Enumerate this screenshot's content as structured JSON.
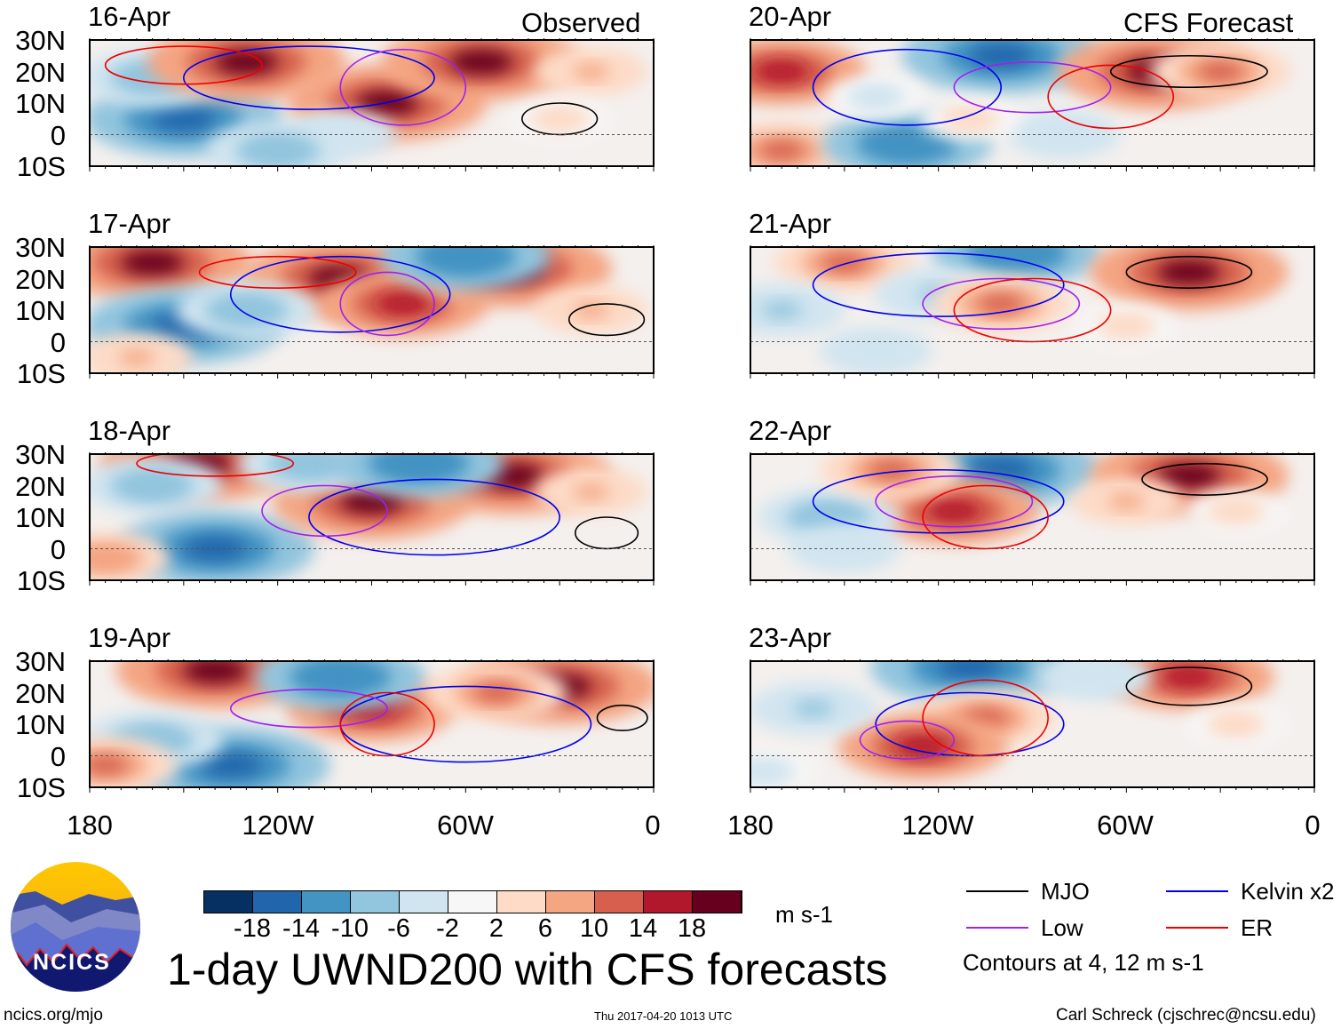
{
  "labels": {
    "observed": "Observed",
    "forecast": "CFS Forecast",
    "lat_ticks": [
      "30N",
      "20N",
      "10N",
      "0",
      "10S"
    ],
    "lon_ticks": [
      "180",
      "120W",
      "60W",
      "0"
    ],
    "title": "1-day UWND200 with CFS forecasts",
    "units": "m s-1",
    "website": "ncics.org/mjo",
    "timestamp": "Thu 2017-04-20 1013 UTC",
    "author": "Carl Schreck (cjschrec@ncsu.edu)",
    "logo_text": "NCICS",
    "contour_note": "Contours at 4, 12 m s-1"
  },
  "legend": [
    {
      "label": "MJO",
      "color": "#000000"
    },
    {
      "label": "Kelvin x2",
      "color": "#0000ee"
    },
    {
      "label": "Low",
      "color": "#a020f0"
    },
    {
      "label": "ER",
      "color": "#ee0000"
    }
  ],
  "colorbar": {
    "colors": [
      "#053061",
      "#2166ac",
      "#4393c3",
      "#92c5de",
      "#d1e5f0",
      "#f7f7f7",
      "#fddbc7",
      "#f4a582",
      "#d6604d",
      "#b2182b",
      "#67001f"
    ],
    "ticks": [
      "-18",
      "-14",
      "-10",
      "-6",
      "-2",
      "2",
      "6",
      "10",
      "14",
      "18"
    ]
  },
  "panels": [
    {
      "date": "16-Apr",
      "anoms": [
        [
          -150,
          5,
          -18
        ],
        [
          -160,
          18,
          -10
        ],
        [
          -130,
          23,
          18
        ],
        [
          -85,
          10,
          18
        ],
        [
          -55,
          23,
          18
        ],
        [
          -20,
          20,
          6
        ],
        [
          -100,
          0,
          -6
        ],
        [
          -30,
          5,
          4
        ],
        [
          -120,
          -5,
          -10
        ]
      ],
      "contours": [
        [
          "Kelvin x2",
          -110,
          18,
          40,
          10
        ],
        [
          "Low",
          -80,
          15,
          20,
          12
        ],
        [
          "ER",
          -150,
          22,
          25,
          6
        ],
        [
          "MJO",
          -30,
          5,
          12,
          5
        ]
      ]
    },
    {
      "date": "17-Apr",
      "anoms": [
        [
          -160,
          25,
          18
        ],
        [
          -150,
          5,
          -18
        ],
        [
          -100,
          20,
          18
        ],
        [
          -80,
          12,
          14
        ],
        [
          -45,
          23,
          18
        ],
        [
          -130,
          10,
          -10
        ],
        [
          -60,
          27,
          -14
        ],
        [
          -20,
          10,
          6
        ],
        [
          -165,
          -5,
          6
        ]
      ],
      "contours": [
        [
          "Kelvin x2",
          -100,
          15,
          35,
          12
        ],
        [
          "Low",
          -85,
          12,
          15,
          10
        ],
        [
          "ER",
          -120,
          22,
          25,
          5
        ],
        [
          "MJO",
          -15,
          7,
          12,
          5
        ]
      ]
    },
    {
      "date": "18-Apr",
      "anoms": [
        [
          -145,
          27,
          18
        ],
        [
          -160,
          20,
          -10
        ],
        [
          -140,
          0,
          -18
        ],
        [
          -90,
          15,
          18
        ],
        [
          -45,
          23,
          18
        ],
        [
          -110,
          27,
          -10
        ],
        [
          -20,
          18,
          6
        ],
        [
          -75,
          27,
          -14
        ],
        [
          -175,
          -3,
          8
        ]
      ],
      "contours": [
        [
          "Kelvin x2",
          -70,
          10,
          40,
          12
        ],
        [
          "Low",
          -105,
          12,
          20,
          8
        ],
        [
          "ER",
          -140,
          27,
          25,
          4
        ],
        [
          "MJO",
          -15,
          5,
          10,
          5
        ]
      ]
    },
    {
      "date": "19-Apr",
      "anoms": [
        [
          -140,
          27,
          18
        ],
        [
          -135,
          -3,
          -18
        ],
        [
          -160,
          5,
          -10
        ],
        [
          -90,
          15,
          14
        ],
        [
          -30,
          22,
          18
        ],
        [
          -100,
          25,
          -14
        ],
        [
          -50,
          20,
          10
        ],
        [
          -175,
          -3,
          10
        ]
      ],
      "contours": [
        [
          "Kelvin x2",
          -60,
          10,
          40,
          12
        ],
        [
          "Low",
          -110,
          15,
          25,
          6
        ],
        [
          "ER",
          -85,
          10,
          15,
          10
        ],
        [
          "MJO",
          -10,
          12,
          8,
          4
        ]
      ]
    },
    {
      "date": "20-Apr",
      "anoms": [
        [
          -170,
          20,
          14
        ],
        [
          -100,
          25,
          -18
        ],
        [
          -50,
          20,
          18
        ],
        [
          -30,
          20,
          10
        ],
        [
          -170,
          -5,
          10
        ],
        [
          -130,
          -3,
          -14
        ],
        [
          -80,
          0,
          -6
        ],
        [
          -110,
          5,
          4
        ],
        [
          -140,
          12,
          -4
        ]
      ],
      "contours": [
        [
          "Kelvin x2",
          -130,
          15,
          30,
          12
        ],
        [
          "Low",
          -90,
          15,
          25,
          8
        ],
        [
          "ER",
          -65,
          12,
          20,
          10
        ],
        [
          "MJO",
          -40,
          20,
          25,
          5
        ]
      ]
    },
    {
      "date": "21-Apr",
      "anoms": [
        [
          -150,
          25,
          10
        ],
        [
          -95,
          28,
          -14
        ],
        [
          -40,
          22,
          18
        ],
        [
          -120,
          15,
          -8
        ],
        [
          -100,
          12,
          10
        ],
        [
          -170,
          10,
          -8
        ],
        [
          -60,
          5,
          4
        ],
        [
          -140,
          -3,
          -6
        ]
      ],
      "contours": [
        [
          "Kelvin x2",
          -120,
          18,
          40,
          10
        ],
        [
          "Low",
          -100,
          12,
          25,
          8
        ],
        [
          "ER",
          -90,
          10,
          25,
          10
        ],
        [
          "MJO",
          -40,
          22,
          20,
          5
        ]
      ]
    },
    {
      "date": "22-Apr",
      "anoms": [
        [
          -100,
          25,
          -18
        ],
        [
          -40,
          23,
          18
        ],
        [
          -115,
          12,
          14
        ],
        [
          -155,
          10,
          -10
        ],
        [
          -135,
          25,
          10
        ],
        [
          -60,
          15,
          6
        ],
        [
          -150,
          0,
          -6
        ],
        [
          -25,
          12,
          4
        ]
      ],
      "contours": [
        [
          "Kelvin x2",
          -120,
          15,
          40,
          10
        ],
        [
          "Low",
          -115,
          15,
          25,
          8
        ],
        [
          "ER",
          -105,
          10,
          20,
          10
        ],
        [
          "MJO",
          -35,
          22,
          20,
          5
        ]
      ]
    },
    {
      "date": "23-Apr",
      "anoms": [
        [
          -110,
          28,
          -18
        ],
        [
          -40,
          25,
          14
        ],
        [
          -105,
          12,
          10
        ],
        [
          -125,
          3,
          14
        ],
        [
          -160,
          15,
          -8
        ],
        [
          -70,
          25,
          -6
        ],
        [
          -25,
          10,
          4
        ],
        [
          -175,
          -5,
          -4
        ]
      ],
      "contours": [
        [
          "Kelvin x2",
          -110,
          10,
          30,
          10
        ],
        [
          "Low",
          -130,
          5,
          15,
          6
        ],
        [
          "ER",
          -105,
          12,
          20,
          12
        ],
        [
          "MJO",
          -40,
          22,
          20,
          6
        ]
      ]
    }
  ]
}
